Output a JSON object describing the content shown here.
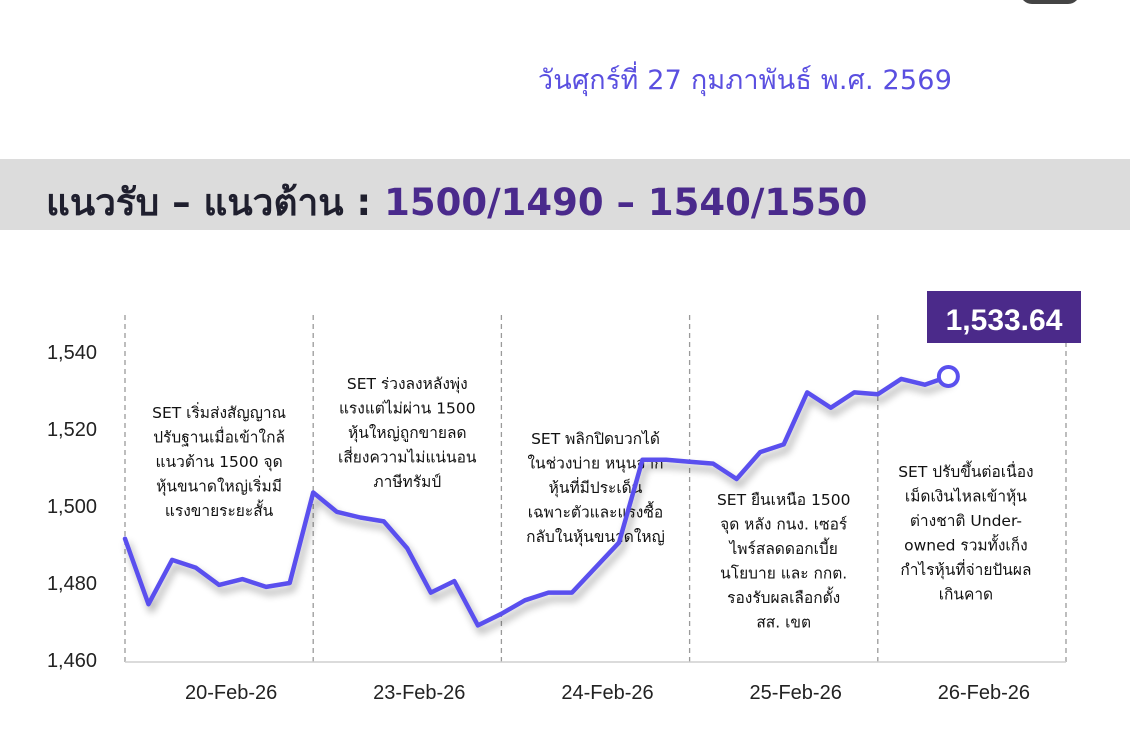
{
  "header": {
    "date": "วันศุกร์ที่ 27 กุมภาพันธ์ พ.ศ. 2569",
    "band_label": "แนวรับ – แนวต้าน :",
    "band_levels": "1500/1490 – 1540/1550"
  },
  "colors": {
    "line": "#5a50ee",
    "badge": "#4b2a8a",
    "band": "#dcdcdc",
    "date": "#5a4fe0"
  },
  "chart_data": {
    "type": "line",
    "title": "",
    "xlabel": "",
    "ylabel": "",
    "ylim": [
      1460,
      1540
    ],
    "yticks": [
      1460,
      1480,
      1500,
      1520,
      1540
    ],
    "ytick_labels": [
      "1,460",
      "1,480",
      "1,500",
      "1,520",
      "1,540"
    ],
    "day_labels": [
      "20-Feb-26",
      "23-Feb-26",
      "24-Feb-26",
      "25-Feb-26",
      "26-Feb-26"
    ],
    "grid": false,
    "points_per_day": 8,
    "series": [
      {
        "values": [
          1491.5,
          1474.5,
          1486,
          1484,
          1479.5,
          1481,
          1479,
          1480,
          1503.5,
          1498.5,
          1497,
          1496,
          1489,
          1477.5,
          1480.5,
          1469,
          1472,
          1475.5,
          1477.5,
          1477.5,
          1484,
          1490.5,
          1512,
          1512,
          1511.5,
          1511,
          1507,
          1514,
          1516,
          1529.5,
          1525.5,
          1529.5,
          1529,
          1533,
          1531.5,
          1533.64
        ]
      }
    ],
    "last_value_label": "1,533.64",
    "annotations": [
      [
        "SET เริ่มส่งสัญญาณ",
        "ปรับฐานเมื่อเข้าใกล้",
        "แนวต้าน 1500 จุด",
        "หุ้นขนาดใหญ่เริ่มมี",
        "แรงขายระยะสั้น"
      ],
      [
        "SET ร่วงลงหลังพุ่ง",
        "แรงแต่ไม่ผ่าน 1500",
        "หุ้นใหญ่ถูกขายลด",
        "เสี่ยงความไม่แน่นอน",
        "ภาษีทรัมป์"
      ],
      [
        "SET พลิกปิดบวกได้",
        "ในช่วงบ่าย หนุนจาก",
        "หุ้นที่มีประเด็น",
        "เฉพาะตัวและแรงซื้อ",
        "กลับในหุ้นขนาดใหญ่"
      ],
      [
        "SET ยืนเหนือ 1500",
        "จุด หลัง กนง. เซอร์",
        "ไพร์สลดดอกเบี้ย",
        "นโยบาย และ กกต.",
        "รองรับผลเลือกตั้ง",
        "สส. เขต"
      ],
      [
        "SET ปรับขึ้นต่อเนื่อง",
        "เม็ดเงินไหลเข้าหุ้น",
        "ต่างชาติ Under-",
        "owned รวมทั้งเก็ง",
        "กำไรหุ้นที่จ่ายปันผล",
        "เกินคาด"
      ]
    ]
  }
}
